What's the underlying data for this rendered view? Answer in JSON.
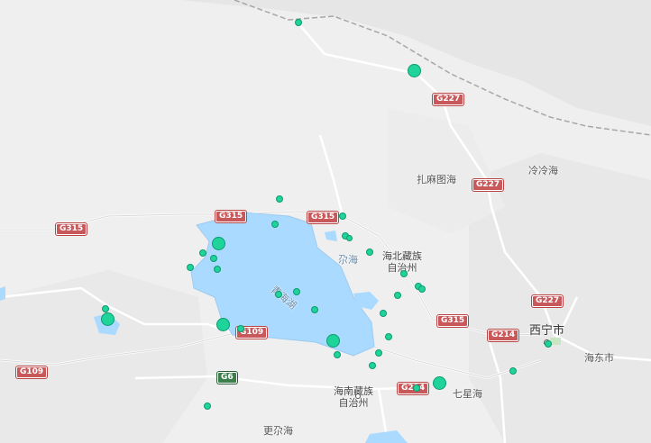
{
  "map": {
    "place_labels": [
      {
        "id": "zhamatu",
        "text": "扎麻图海"
      },
      {
        "id": "lenglenghai",
        "text": "冷冷海"
      },
      {
        "id": "duohai",
        "text": "尕海"
      },
      {
        "id": "haibei",
        "text": "海北藏族\n自治州"
      },
      {
        "id": "qinghaihu",
        "text": "青海湖"
      },
      {
        "id": "xining",
        "text": "西宁市"
      },
      {
        "id": "haidong",
        "text": "海东市"
      },
      {
        "id": "hainan",
        "text": "海南藏族\n自治州"
      },
      {
        "id": "qixinghai",
        "text": "七星海"
      },
      {
        "id": "gengduohai",
        "text": "更尕海"
      }
    ],
    "road_shields": [
      {
        "id": "g227-a",
        "text": "G227",
        "style": "red"
      },
      {
        "id": "g227-b",
        "text": "G227",
        "style": "red"
      },
      {
        "id": "g227-c",
        "text": "G227",
        "style": "red"
      },
      {
        "id": "g315-a",
        "text": "G315",
        "style": "red"
      },
      {
        "id": "g315-b",
        "text": "G315",
        "style": "red"
      },
      {
        "id": "g315-c",
        "text": "G315",
        "style": "red"
      },
      {
        "id": "g315-d",
        "text": "G315",
        "style": "red"
      },
      {
        "id": "g109-a",
        "text": "G109",
        "style": "red"
      },
      {
        "id": "g109-b",
        "text": "G109",
        "style": "red"
      },
      {
        "id": "g214",
        "text": "G214",
        "style": "red"
      },
      {
        "id": "g6",
        "text": "G6",
        "style": "green"
      },
      {
        "id": "g214-b",
        "text": "G214",
        "style": "red"
      }
    ],
    "marker_color": "#1ed49a",
    "marker_count": 40
  }
}
